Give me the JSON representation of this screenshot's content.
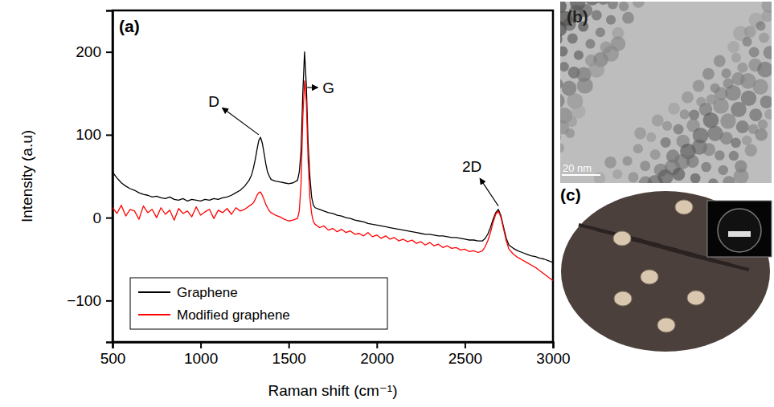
{
  "chart_data": {
    "type": "line",
    "panel_label": "(a)",
    "x_label": "Raman shift (cm⁻¹)",
    "y_label": "Intensity (a.u)",
    "xlim": [
      500,
      3000
    ],
    "xticks": [
      500,
      1000,
      1500,
      2000,
      2500,
      3000
    ],
    "ylim": [
      -150,
      250
    ],
    "yticks": [
      {
        "value": -100,
        "label": "−100"
      },
      0,
      100,
      200
    ],
    "legend": "lower left",
    "x": [
      500,
      525,
      550,
      575,
      600,
      625,
      650,
      675,
      700,
      725,
      750,
      775,
      800,
      825,
      850,
      875,
      900,
      925,
      950,
      975,
      1000,
      1025,
      1050,
      1075,
      1100,
      1125,
      1150,
      1175,
      1200,
      1225,
      1250,
      1275,
      1290,
      1300,
      1310,
      1320,
      1330,
      1340,
      1350,
      1360,
      1370,
      1380,
      1390,
      1400,
      1425,
      1450,
      1475,
      1500,
      1525,
      1550,
      1560,
      1570,
      1580,
      1590,
      1600,
      1610,
      1620,
      1630,
      1640,
      1650,
      1675,
      1700,
      1725,
      1750,
      1775,
      1800,
      1825,
      1850,
      1875,
      1900,
      1925,
      1950,
      1975,
      2000,
      2025,
      2050,
      2075,
      2100,
      2125,
      2150,
      2175,
      2200,
      2225,
      2250,
      2275,
      2300,
      2325,
      2350,
      2375,
      2400,
      2425,
      2450,
      2475,
      2500,
      2525,
      2550,
      2575,
      2600,
      2615,
      2630,
      2645,
      2660,
      2675,
      2690,
      2705,
      2720,
      2735,
      2750,
      2775,
      2800,
      2825,
      2850,
      2875,
      2900,
      2925,
      2950,
      2975,
      3000
    ],
    "series": [
      {
        "name": "Graphene",
        "color": "#000000",
        "values": [
          55,
          48,
          42,
          38,
          35,
          33,
          30,
          28,
          27,
          25,
          26,
          24,
          23,
          25,
          22,
          21,
          23,
          20,
          22,
          21,
          20,
          22,
          21,
          23,
          22,
          24,
          25,
          27,
          30,
          33,
          38,
          45,
          52,
          60,
          70,
          82,
          93,
          97,
          90,
          78,
          65,
          55,
          50,
          46,
          44,
          43,
          42,
          41,
          42,
          45,
          55,
          80,
          150,
          200,
          160,
          90,
          50,
          25,
          15,
          12,
          10,
          8,
          6,
          5,
          3,
          2,
          0,
          -1,
          -3,
          -4,
          -5,
          -7,
          -8,
          -9,
          -10,
          -11,
          -12,
          -13,
          -14,
          -15,
          -16,
          -17,
          -18,
          -19,
          -20,
          -20,
          -21,
          -22,
          -22,
          -23,
          -24,
          -24,
          -25,
          -26,
          -27,
          -27,
          -28,
          -28,
          -25,
          -20,
          -12,
          -2,
          6,
          10,
          2,
          -12,
          -25,
          -33,
          -37,
          -40,
          -42,
          -44,
          -46,
          -47,
          -49,
          -50,
          -52,
          -54
        ]
      },
      {
        "name": "Modified graphene",
        "color": "#ff0000",
        "values": [
          12,
          5,
          15,
          2,
          10,
          8,
          -2,
          14,
          6,
          10,
          0,
          12,
          4,
          9,
          -3,
          11,
          5,
          8,
          1,
          13,
          3,
          7,
          10,
          -1,
          9,
          6,
          11,
          4,
          12,
          8,
          10,
          14,
          16,
          18,
          22,
          27,
          30,
          31,
          27,
          22,
          16,
          12,
          8,
          6,
          3,
          1,
          -2,
          -4,
          -3,
          -1,
          8,
          40,
          120,
          165,
          140,
          70,
          25,
          5,
          -5,
          -8,
          -12,
          -10,
          -15,
          -13,
          -17,
          -14,
          -18,
          -16,
          -20,
          -19,
          -22,
          -18,
          -23,
          -21,
          -25,
          -22,
          -26,
          -24,
          -28,
          -26,
          -29,
          -27,
          -31,
          -29,
          -33,
          -30,
          -34,
          -32,
          -36,
          -34,
          -37,
          -36,
          -39,
          -38,
          -41,
          -40,
          -42,
          -40,
          -35,
          -28,
          -18,
          -6,
          4,
          8,
          0,
          -14,
          -28,
          -38,
          -44,
          -48,
          -51,
          -54,
          -57,
          -60,
          -64,
          -68,
          -72,
          -76
        ]
      }
    ],
    "annotations": [
      {
        "text": "D",
        "x": 1075,
        "y": 140,
        "arrow_x": 1330,
        "arrow_y": 100
      },
      {
        "text": "G",
        "x": 1725,
        "y": 157,
        "arrow_x": 1605,
        "arrow_y": 157
      },
      {
        "text": "2D",
        "x": 2540,
        "y": 62,
        "arrow_x": 2690,
        "arrow_y": 14
      }
    ]
  },
  "panels": [
    {
      "label": "(b)",
      "scale_bar": "20 nm"
    },
    {
      "label": "(c)"
    }
  ]
}
